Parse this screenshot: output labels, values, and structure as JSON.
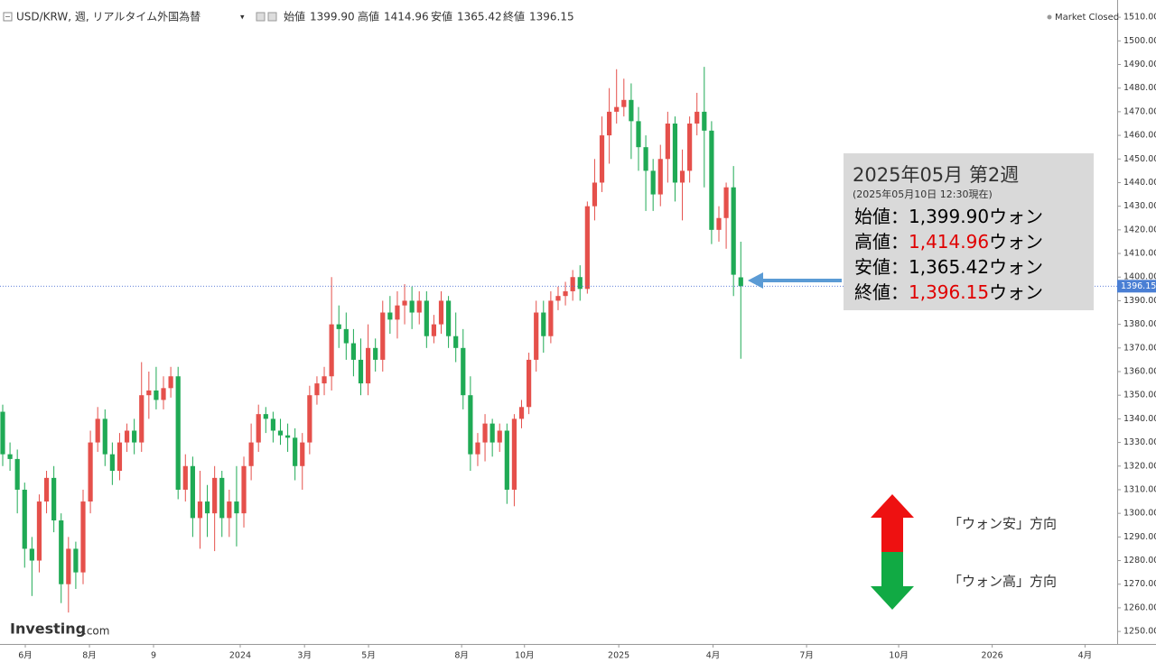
{
  "header": {
    "symbol": "USD/KRW, 週, リアルタイム外国為替",
    "open_label": "始値",
    "open": "1399.90",
    "high_label": "高値",
    "high": "1414.96",
    "low_label": "安値",
    "low": "1365.42",
    "close_label": "終値",
    "close": "1396.15",
    "status": "Market Closed",
    "logo_main": "Investing",
    "logo_sub": ".com"
  },
  "chart_data": {
    "type": "candlestick",
    "up_color": "#e5504b",
    "down_color": "#1faa55",
    "grid": false,
    "open": [
      1343,
      1325,
      1323,
      1310,
      1285,
      1280,
      1305,
      1315,
      1297,
      1270,
      1285,
      1275,
      1305,
      1330,
      1340,
      1325,
      1318,
      1330,
      1335,
      1330,
      1350,
      1352,
      1348,
      1353,
      1358,
      1310,
      1320,
      1298,
      1305,
      1300,
      1315,
      1298,
      1305,
      1300,
      1320,
      1330,
      1342,
      1340,
      1335,
      1333,
      1332,
      1320,
      1330,
      1350,
      1355,
      1358,
      1380,
      1378,
      1372,
      1365,
      1355,
      1370,
      1365,
      1385,
      1382,
      1388,
      1390,
      1385,
      1390,
      1375,
      1380,
      1390,
      1375,
      1370,
      1350,
      1325,
      1330,
      1338,
      1330,
      1335,
      1310,
      1340,
      1345,
      1365,
      1385,
      1375,
      1390,
      1392,
      1394,
      1400,
      1395,
      1430,
      1440,
      1460,
      1470,
      1472,
      1475,
      1466,
      1455,
      1445,
      1435,
      1450,
      1465,
      1440,
      1445,
      1465,
      1470,
      1462,
      1420,
      1425,
      1438,
      1399.9
    ],
    "high": [
      1346,
      1330,
      1327,
      1313,
      1290,
      1308,
      1318,
      1320,
      1300,
      1290,
      1288,
      1310,
      1335,
      1345,
      1344,
      1330,
      1334,
      1338,
      1340,
      1364,
      1360,
      1362,
      1358,
      1362,
      1362,
      1325,
      1324,
      1318,
      1312,
      1320,
      1318,
      1310,
      1320,
      1324,
      1338,
      1346,
      1345,
      1343,
      1340,
      1338,
      1336,
      1334,
      1354,
      1358,
      1362,
      1400,
      1388,
      1385,
      1378,
      1374,
      1380,
      1374,
      1390,
      1392,
      1394,
      1397,
      1396,
      1394,
      1394,
      1384,
      1394,
      1392,
      1385,
      1378,
      1358,
      1334,
      1342,
      1340,
      1338,
      1338,
      1342,
      1348,
      1368,
      1390,
      1390,
      1394,
      1396,
      1398,
      1403,
      1405,
      1432,
      1450,
      1468,
      1480,
      1488,
      1484,
      1482,
      1472,
      1460,
      1450,
      1456,
      1470,
      1468,
      1454,
      1468,
      1478,
      1489,
      1466,
      1430,
      1440,
      1447,
      1414.96
    ],
    "low": [
      1320,
      1318,
      1300,
      1277,
      1265,
      1275,
      1300,
      1292,
      1262,
      1258,
      1268,
      1270,
      1300,
      1326,
      1320,
      1312,
      1314,
      1326,
      1325,
      1326,
      1340,
      1344,
      1344,
      1349,
      1306,
      1305,
      1290,
      1285,
      1290,
      1284,
      1290,
      1290,
      1286,
      1294,
      1314,
      1326,
      1334,
      1330,
      1329,
      1326,
      1314,
      1310,
      1325,
      1346,
      1350,
      1352,
      1370,
      1365,
      1358,
      1350,
      1350,
      1360,
      1360,
      1376,
      1374,
      1380,
      1378,
      1380,
      1370,
      1372,
      1376,
      1370,
      1364,
      1344,
      1318,
      1320,
      1322,
      1324,
      1326,
      1304,
      1303,
      1336,
      1342,
      1360,
      1368,
      1372,
      1386,
      1388,
      1390,
      1390,
      1393,
      1424,
      1436,
      1448,
      1465,
      1468,
      1450,
      1445,
      1428,
      1428,
      1430,
      1440,
      1432,
      1424,
      1440,
      1460,
      1438,
      1414,
      1415,
      1412,
      1392,
      1365.42
    ],
    "close": [
      1325,
      1323,
      1310,
      1285,
      1280,
      1305,
      1315,
      1297,
      1270,
      1285,
      1275,
      1305,
      1330,
      1340,
      1325,
      1318,
      1330,
      1335,
      1330,
      1350,
      1352,
      1348,
      1353,
      1358,
      1310,
      1320,
      1298,
      1305,
      1300,
      1315,
      1298,
      1305,
      1300,
      1320,
      1330,
      1342,
      1340,
      1335,
      1333,
      1332,
      1320,
      1330,
      1350,
      1355,
      1358,
      1380,
      1378,
      1372,
      1365,
      1355,
      1370,
      1365,
      1385,
      1382,
      1388,
      1390,
      1385,
      1390,
      1375,
      1380,
      1390,
      1375,
      1370,
      1350,
      1325,
      1330,
      1338,
      1330,
      1335,
      1310,
      1340,
      1345,
      1365,
      1385,
      1375,
      1390,
      1392,
      1394,
      1400,
      1395,
      1430,
      1440,
      1460,
      1470,
      1472,
      1475,
      1466,
      1455,
      1445,
      1435,
      1450,
      1465,
      1440,
      1445,
      1465,
      1470,
      1462,
      1420,
      1425,
      1438,
      1401,
      1396.15
    ],
    "last_price_label": "1396.15",
    "xlim": [
      -0.37,
      152.5
    ],
    "xticks": [
      {
        "value": 3.09,
        "label": "6月"
      },
      {
        "value": 11.87,
        "label": "8月"
      },
      {
        "value": 20.64,
        "label": "9"
      },
      {
        "value": 32.5,
        "label": "2024"
      },
      {
        "value": 41.3,
        "label": "3月"
      },
      {
        "value": 50.06,
        "label": "5月"
      },
      {
        "value": 62.8,
        "label": "8月"
      },
      {
        "value": 71.4,
        "label": "10月"
      },
      {
        "value": 84.3,
        "label": "2025"
      },
      {
        "value": 97.2,
        "label": "4月"
      },
      {
        "value": 110,
        "label": "7月"
      },
      {
        "value": 122.6,
        "label": "10月"
      },
      {
        "value": 135.4,
        "label": "2026"
      },
      {
        "value": 148.1,
        "label": "4月"
      }
    ],
    "ylim": [
      1244.7,
      1517.3
    ],
    "yticks": [
      {
        "value": 1250,
        "label": "1250.00"
      },
      {
        "value": 1260,
        "label": "1260.00"
      },
      {
        "value": 1270,
        "label": "1270.00"
      },
      {
        "value": 1280,
        "label": "1280.00"
      },
      {
        "value": 1290,
        "label": "1290.00"
      },
      {
        "value": 1300,
        "label": "1300.00"
      },
      {
        "value": 1310,
        "label": "1310.00"
      },
      {
        "value": 1320,
        "label": "1320.00"
      },
      {
        "value": 1330,
        "label": "1330.00"
      },
      {
        "value": 1340,
        "label": "1340.00"
      },
      {
        "value": 1350,
        "label": "1350.00"
      },
      {
        "value": 1360,
        "label": "1360.00"
      },
      {
        "value": 1370,
        "label": "1370.00"
      },
      {
        "value": 1380,
        "label": "1380.00"
      },
      {
        "value": 1390,
        "label": "1390.00"
      },
      {
        "value": 1400,
        "label": "1400.00"
      },
      {
        "value": 1410,
        "label": "1410.00"
      },
      {
        "value": 1420,
        "label": "1420.00"
      },
      {
        "value": 1430,
        "label": "1430.00"
      },
      {
        "value": 1440,
        "label": "1440.00"
      },
      {
        "value": 1450,
        "label": "1450.00"
      },
      {
        "value": 1460,
        "label": "1460.00"
      },
      {
        "value": 1470,
        "label": "1470.00"
      },
      {
        "value": 1480,
        "label": "1480.00"
      },
      {
        "value": 1490,
        "label": "1490.00"
      },
      {
        "value": 1500,
        "label": "1500.00"
      },
      {
        "value": 1510,
        "label": "1510.00"
      }
    ]
  },
  "annotation": {
    "title": "2025年05月 第2週",
    "subtitle": "(2025年05月10日 12:30現在)",
    "rows": [
      {
        "label": "始値：",
        "value": "1,399.90",
        "unit": "ウォン",
        "value_color": "#000000"
      },
      {
        "label": "高値：",
        "value": "1,414.96",
        "unit": "ウォン",
        "value_color": "#e00000"
      },
      {
        "label": "安値：",
        "value": "1,365.42",
        "unit": "ウォン",
        "value_color": "#000000"
      },
      {
        "label": "終値：",
        "value": "1,396.15",
        "unit": "ウォン",
        "value_color": "#e00000"
      }
    ]
  },
  "direction": {
    "up": "「ウォン安」方向",
    "down": "「ウォン高」方向"
  }
}
